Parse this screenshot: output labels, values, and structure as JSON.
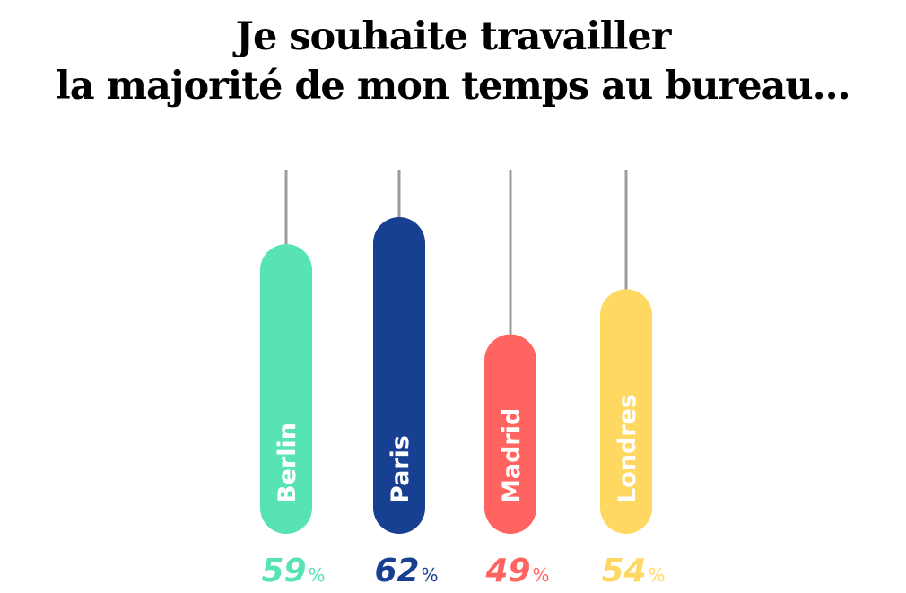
{
  "chart_data": {
    "type": "bar",
    "title_line1": "Je souhaite travailler",
    "title_line2": "la majorité de mon temps au bureau...",
    "categories": [
      "Berlin",
      "Paris",
      "Madrid",
      "Londres"
    ],
    "values": [
      59,
      62,
      49,
      54
    ],
    "unit": "%",
    "colors": [
      "#58e3b5",
      "#173f92",
      "#ff6460",
      "#ffd862"
    ],
    "value_colors": [
      "#58e3b5",
      "#173f92",
      "#ff6460",
      "#ffd862"
    ],
    "string_color": "#9e9a9a",
    "grid": false,
    "legend": "none"
  }
}
